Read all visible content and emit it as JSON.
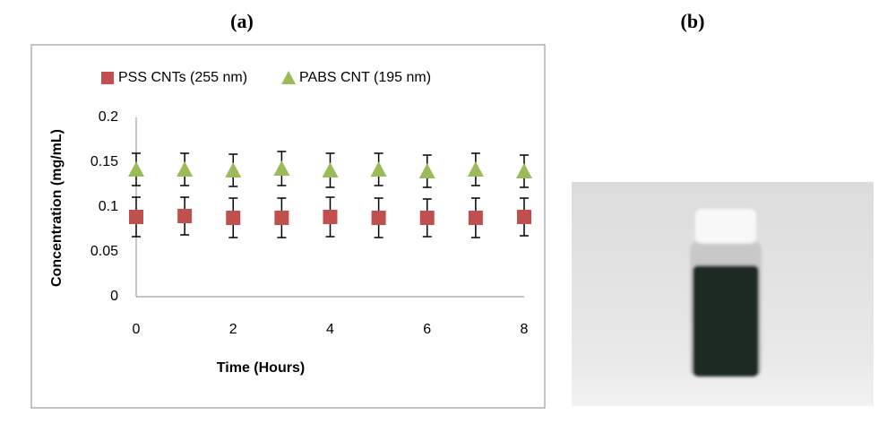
{
  "panel_labels": [
    "(a)",
    "(b)"
  ],
  "chart_data": {
    "type": "scatter",
    "x_label": "Time (Hours)",
    "y_label": "Concentration (mg/mL)",
    "x": [
      0,
      1,
      2,
      3,
      4,
      5,
      6,
      7,
      8
    ],
    "series": [
      {
        "name": "PSS CNTs (255 nm)",
        "color": "#c0504d",
        "marker": "square",
        "values": [
          0.089,
          0.09,
          0.088,
          0.088,
          0.089,
          0.088,
          0.088,
          0.088,
          0.089
        ],
        "errors": [
          0.022,
          0.021,
          0.022,
          0.022,
          0.022,
          0.022,
          0.021,
          0.022,
          0.021
        ]
      },
      {
        "name": "PABS CNT (195 nm)",
        "color": "#9bbb59",
        "marker": "triangle",
        "values": [
          0.142,
          0.142,
          0.141,
          0.143,
          0.141,
          0.142,
          0.14,
          0.142,
          0.14
        ],
        "errors": [
          0.018,
          0.018,
          0.018,
          0.019,
          0.019,
          0.018,
          0.018,
          0.018,
          0.018
        ]
      }
    ],
    "xlim": [
      0,
      8
    ],
    "xticks": [
      0,
      2,
      4,
      6,
      8
    ],
    "ylim": [
      0,
      0.2
    ],
    "yticks": [
      0,
      0.05,
      0.1,
      0.15,
      0.2
    ],
    "legend": "top",
    "grid": false
  }
}
